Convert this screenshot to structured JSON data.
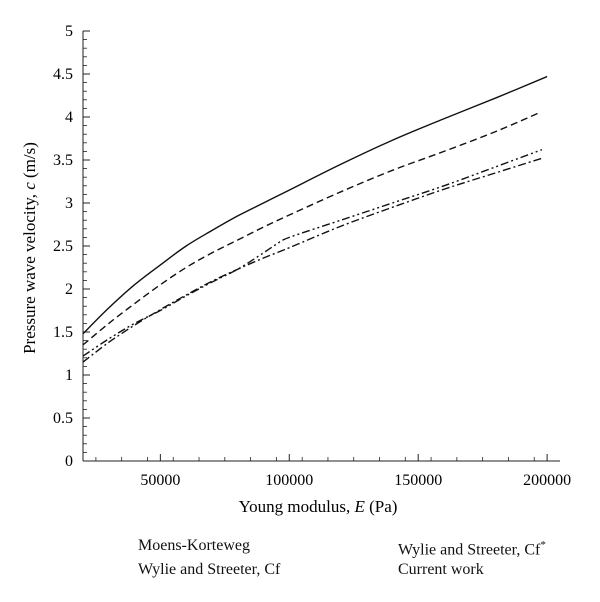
{
  "chart_data": {
    "type": "line",
    "xlabel_prefix": "Young modulus, ",
    "xlabel_italic": "E",
    "xlabel_suffix": " (Pa)",
    "ylabel_prefix": "Pressure wave velocity, ",
    "ylabel_italic": "c",
    "ylabel_suffix": " (m/s)",
    "xlim": [
      20000,
      205000
    ],
    "ylim": [
      0,
      5
    ],
    "xticks": [
      50000,
      100000,
      150000,
      200000
    ],
    "xtick_labels": [
      "50000",
      "100000",
      "150000",
      "200000"
    ],
    "yticks": [
      0,
      0.5,
      1,
      1.5,
      2,
      2.5,
      3,
      3.5,
      4,
      4.5,
      5
    ],
    "ytick_labels": [
      "0",
      "0.5",
      "1",
      "1.5",
      "2",
      "2.5",
      "3",
      "3.5",
      "4",
      "4.5",
      "5"
    ],
    "grid": false,
    "series": [
      {
        "name": "Moens-Korteweg",
        "style": "solid",
        "x": [
          20000,
          30000,
          40000,
          50000,
          60000,
          70000,
          80000,
          90000,
          100000,
          120000,
          140000,
          160000,
          180000,
          200000
        ],
        "y": [
          1.48,
          1.78,
          2.05,
          2.28,
          2.5,
          2.68,
          2.85,
          3.0,
          3.15,
          3.45,
          3.73,
          3.98,
          4.22,
          4.47
        ]
      },
      {
        "name": "Wylie and Streeter, Cf",
        "style": "dashed",
        "x": [
          20000,
          30000,
          40000,
          50000,
          60000,
          70000,
          80000,
          90000,
          100000,
          120000,
          140000,
          160000,
          180000,
          197000
        ],
        "y": [
          1.35,
          1.6,
          1.83,
          2.05,
          2.25,
          2.42,
          2.57,
          2.72,
          2.86,
          3.13,
          3.38,
          3.6,
          3.83,
          4.05
        ]
      },
      {
        "name": "Wylie and Streeter, Cf*",
        "style": "dashdot",
        "x": [
          20000,
          30000,
          40000,
          50000,
          60000,
          70000,
          80000,
          90000,
          100000,
          120000,
          140000,
          160000,
          180000,
          198000
        ],
        "y": [
          1.15,
          1.38,
          1.58,
          1.76,
          1.93,
          2.09,
          2.23,
          2.36,
          2.48,
          2.73,
          2.95,
          3.16,
          3.35,
          3.52
        ]
      },
      {
        "name": "Current work",
        "style": "dashdotdot",
        "x": [
          20000,
          30000,
          40000,
          50000,
          60000,
          70000,
          80000,
          90000,
          95000,
          100000,
          120000,
          140000,
          160000,
          180000,
          198000
        ],
        "y": [
          1.22,
          1.42,
          1.6,
          1.75,
          1.92,
          2.08,
          2.23,
          2.42,
          2.52,
          2.6,
          2.8,
          3.0,
          3.2,
          3.42,
          3.62
        ]
      }
    ],
    "legend": {
      "placement": "bottom",
      "entries": [
        {
          "label": "Moens-Korteweg",
          "style": "solid"
        },
        {
          "label": "Wylie and Streeter, Cf",
          "style": "dashed"
        },
        {
          "label": "Wylie and Streeter, Cf",
          "sup": "*",
          "style": "dashdot"
        },
        {
          "label": "Current work",
          "style": "dashdotdot"
        }
      ]
    },
    "colors": {
      "line": "#111111",
      "axis": "#222222",
      "background": "#ffffff"
    }
  }
}
